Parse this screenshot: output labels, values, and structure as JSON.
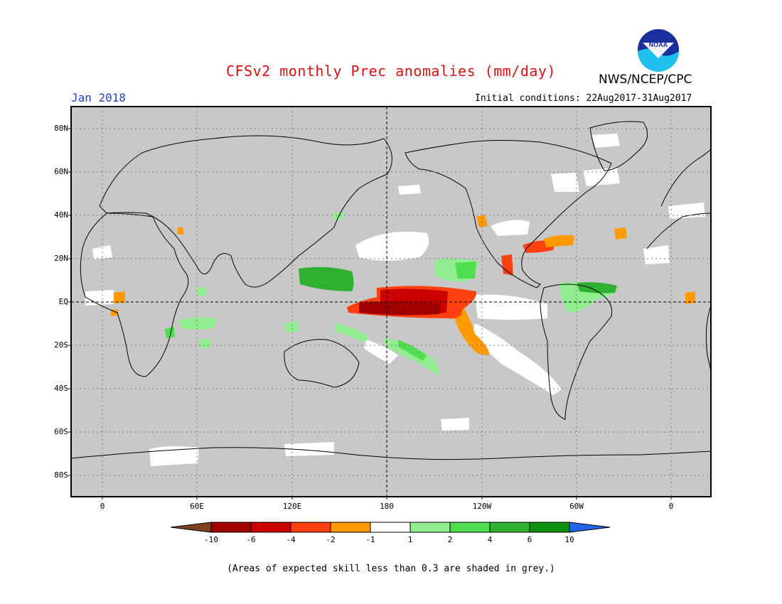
{
  "header": {
    "title": "CFSv2 monthly Prec anomalies (mm/day)",
    "organization": "NWS/NCEP/CPC",
    "logo_text": "NOAA",
    "forecast_month": "Jan 2018",
    "initial_conditions": "Initial conditions: 22Aug2017-31Aug2017"
  },
  "map": {
    "projection": "cylindrical equidistant",
    "skill_mask_color": "#c8c8c8",
    "lat_labels": [
      "80N",
      "60N",
      "40N",
      "20N",
      "EQ",
      "20S",
      "40S",
      "60S",
      "80S"
    ],
    "lon_labels": [
      "0",
      "60E",
      "120E",
      "180",
      "120W",
      "60W",
      "0"
    ]
  },
  "colorbar": {
    "labels": [
      "-10",
      "-6",
      "-4",
      "-2",
      "-1",
      "1",
      "2",
      "4",
      "6",
      "10"
    ],
    "colors": [
      "#7a4020",
      "#a00000",
      "#cc0000",
      "#ff4010",
      "#ff9a00",
      "#ffffff",
      "#90ee90",
      "#50dd50",
      "#30b030",
      "#109010",
      "#2266ee"
    ]
  },
  "footnote": "(Areas of expected skill less than 0.3 are shaded in grey.)"
}
